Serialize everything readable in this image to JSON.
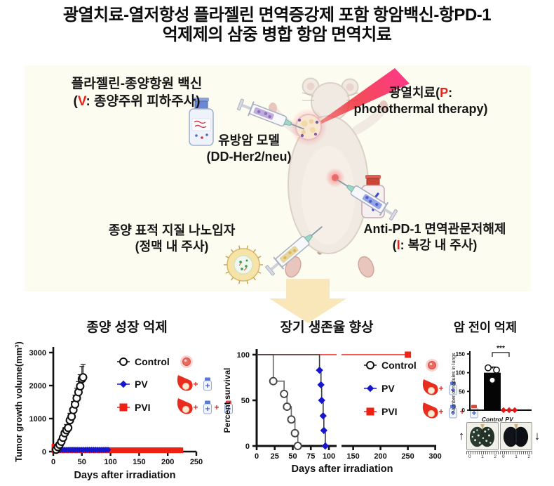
{
  "figure": {
    "title_line1": "광열치료-열저항성 플라젤린 면역증강제 포함 항암백신-항PD-1",
    "title_line2": "억제제의 삼중 병합 항암 면역치료"
  },
  "diagram": {
    "vaccine": {
      "line1": "플라젤린-종양항원 백신",
      "pre": "(",
      "code": "V",
      "post": ": 종양주위 피하주사)"
    },
    "model": {
      "line1": "유방암 모델",
      "line2": "(DD-Her2/neu)"
    },
    "ptt": {
      "pre": "광열치료(",
      "code": "P",
      "post": ":",
      "line2": "photothermal therapy)"
    },
    "lnp": {
      "line1": "종양 표적 지질 나노입자",
      "line2": "(정맥 내 주사)"
    },
    "pd1": {
      "line1": "Anti-PD-1 면역관문저해제",
      "pre": "(",
      "code": "I",
      "post": ": 복강 내 주사)"
    }
  },
  "colors": {
    "accent_red": "#e8231d",
    "pv_blue": "#1616cd",
    "pvi_red": "#ee2012",
    "panel_bg": "#fdfcf1",
    "arrow_yellow": "#f9e7ba"
  },
  "chart_data": [
    {
      "id": "tumor_growth",
      "type": "line-scatter",
      "title": "종양 성장 억제",
      "xlabel": "Days after irradiation",
      "ylabel": "Tumor growth volume(mm³)",
      "xlim": [
        0,
        250
      ],
      "xticks": [
        0,
        50,
        100,
        150,
        200,
        250
      ],
      "ylim": [
        0,
        3000
      ],
      "yticks": [
        0,
        1000,
        2000,
        3000
      ],
      "series": [
        {
          "name": "Control",
          "marker": "circle-open",
          "color": "#111111",
          "points": [
            [
              5,
              60
            ],
            [
              8,
              140
            ],
            [
              11,
              210
            ],
            [
              14,
              300
            ],
            [
              17,
              420
            ],
            [
              20,
              560
            ],
            [
              23,
              650
            ],
            [
              26,
              720
            ],
            [
              29,
              950
            ],
            [
              32,
              1060
            ],
            [
              35,
              1260
            ],
            [
              38,
              1430
            ],
            [
              41,
              1620
            ],
            [
              44,
              1800
            ],
            [
              47,
              1980
            ],
            [
              50,
              2200
            ],
            [
              52,
              2250
            ]
          ],
          "err": [
            60,
            80,
            90,
            110,
            130,
            160,
            170,
            190,
            210,
            230,
            260,
            280,
            300,
            320,
            350,
            380,
            390
          ]
        },
        {
          "name": "PV",
          "marker": "diamond",
          "color": "#1616cd",
          "run": {
            "from": 2,
            "to": 96,
            "step": 3.6,
            "y": 55
          }
        },
        {
          "name": "PVI",
          "marker": "square",
          "color": "#ee2012",
          "points": [
            [
              2,
              150
            ]
          ],
          "run": {
            "from": 2,
            "to": 226,
            "step": 4.4,
            "y": 40
          }
        }
      ],
      "legend": [
        {
          "label": "Control",
          "marker": "circle-open",
          "color": "#111111",
          "icons": [
            "tumor"
          ]
        },
        {
          "label": "PV",
          "marker": "diamond",
          "color": "#1616cd",
          "icons": [
            "flame",
            "vial-blue"
          ]
        },
        {
          "label": "PVI",
          "marker": "square",
          "color": "#ee2012",
          "icons": [
            "flame",
            "vial-blue",
            "vial-red"
          ]
        }
      ]
    },
    {
      "id": "survival",
      "type": "kaplan-meier",
      "title": "장기 생존율 향상",
      "xlabel": "Days after irradiation",
      "ylabel": "Percent survival",
      "ylim": [
        0,
        100
      ],
      "yticks": [
        0,
        50,
        100
      ],
      "x_break": {
        "seg1": [
          0,
          110
        ],
        "seg2": [
          130,
          300
        ]
      },
      "xticks_seg1": [
        0,
        25,
        50,
        75,
        100
      ],
      "xticks_seg2": [
        150,
        200,
        250,
        300
      ],
      "series": [
        {
          "name": "Control",
          "marker": "circle-open",
          "color": "#555555",
          "line": "#666666",
          "steps": [
            [
              0,
              100
            ],
            [
              23,
              100
            ],
            [
              23,
              71
            ],
            [
              38,
              71
            ],
            [
              38,
              57
            ],
            [
              42,
              57
            ],
            [
              42,
              43
            ],
            [
              48,
              43
            ],
            [
              48,
              29
            ],
            [
              53,
              29
            ],
            [
              53,
              14
            ],
            [
              57,
              14
            ],
            [
              57,
              0
            ]
          ],
          "markers": [
            [
              23,
              71
            ],
            [
              38,
              57
            ],
            [
              42,
              43
            ],
            [
              48,
              29
            ],
            [
              53,
              14
            ],
            [
              57,
              0
            ]
          ]
        },
        {
          "name": "PV",
          "marker": "diamond",
          "color": "#1616cd",
          "line": "#3a3a3a",
          "steps": [
            [
              0,
              100
            ],
            [
              87,
              100
            ],
            [
              87,
              83
            ],
            [
              89,
              83
            ],
            [
              89,
              67
            ],
            [
              90,
              67
            ],
            [
              90,
              50
            ],
            [
              92,
              50
            ],
            [
              92,
              33
            ],
            [
              93,
              33
            ],
            [
              93,
              17
            ],
            [
              95,
              17
            ],
            [
              95,
              0
            ]
          ],
          "markers": [
            [
              87,
              83
            ],
            [
              89,
              67
            ],
            [
              90,
              50
            ],
            [
              92,
              33
            ],
            [
              93,
              17
            ],
            [
              95,
              0
            ]
          ]
        },
        {
          "name": "PVI",
          "marker": "square",
          "color": "#f22418",
          "steps": [
            [
              0,
              100
            ],
            [
              250,
              100
            ]
          ],
          "markers": [
            [
              250,
              100
            ]
          ]
        }
      ],
      "legend": [
        {
          "label": "Control",
          "marker": "circle-open",
          "color": "#111111",
          "icons": [
            "tumor"
          ]
        },
        {
          "label": "PV",
          "marker": "diamond",
          "color": "#1616cd",
          "icons": [
            "flame",
            "vial-blue"
          ]
        },
        {
          "label": "PVI",
          "marker": "square",
          "color": "#ee2012",
          "icons": [
            "flame",
            "vial-blue",
            "vial-red"
          ]
        }
      ]
    },
    {
      "id": "metastasis",
      "type": "bar-scatter",
      "title": "암 전이 억제",
      "ylabel": "Number of nodules in lungs",
      "ylim": [
        0,
        150
      ],
      "yticks": [
        0,
        50,
        100,
        150
      ],
      "categories": [
        "Control",
        "PV"
      ],
      "bars": [
        {
          "category": "Control",
          "value": 100,
          "err": 15,
          "color": "#050505"
        },
        {
          "category": "PV",
          "value": 0,
          "color": "#e01818"
        }
      ],
      "points": [
        [
          113,
          107,
          80
        ],
        [
          0,
          0,
          0
        ]
      ],
      "significance": "***",
      "photos": {
        "up_arrow": "↑",
        "down_arrow": "↓",
        "ruler_labels": [
          "0",
          "1",
          "2"
        ]
      }
    }
  ]
}
